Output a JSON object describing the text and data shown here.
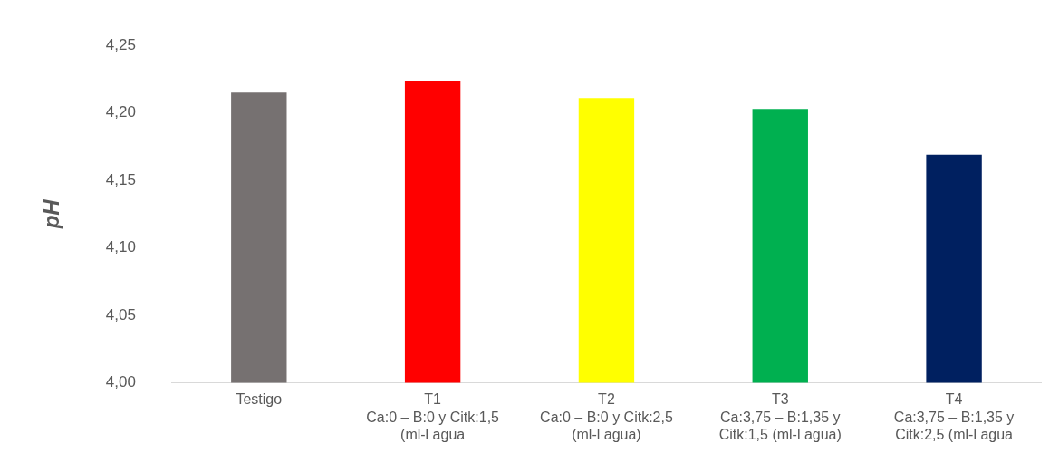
{
  "chart_data": {
    "type": "bar",
    "ylabel": "pH",
    "categories": [
      "Testigo",
      "T1\nCa:0 – B:0 y Citk:1,5\n(ml-l agua",
      "T2\nCa:0 – B:0 y Citk:2,5\n(ml-l agua)",
      "T3\nCa:3,75 – B:1,35 y\nCitk:1,5 (ml-l agua)",
      "T4\nCa:3,75 – B:1,35 y\nCitk:2,5 (ml-l agua"
    ],
    "values": [
      4.215,
      4.224,
      4.211,
      4.203,
      4.169
    ],
    "colors": [
      "#767171",
      "#ff0000",
      "#ffff00",
      "#00b050",
      "#002060"
    ],
    "ylim": [
      4.0,
      4.25
    ],
    "yticks": [
      {
        "value": 4.0,
        "label": "4,00"
      },
      {
        "value": 4.05,
        "label": "4,05"
      },
      {
        "value": 4.1,
        "label": "4,10"
      },
      {
        "value": 4.15,
        "label": "4,15"
      },
      {
        "value": 4.2,
        "label": "4,20"
      },
      {
        "value": 4.25,
        "label": "4,25"
      }
    ],
    "grid": false,
    "legend": false
  }
}
